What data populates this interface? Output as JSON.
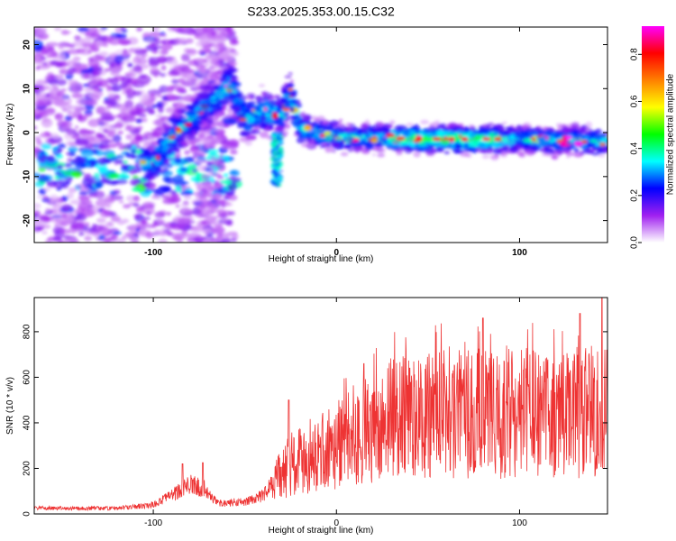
{
  "figure_title": "S233.2025.353.00.15.C32",
  "chart_data": [
    {
      "type": "heatmap",
      "xlabel": "Height of straight line (km)",
      "ylabel": "Frequency (Hz)",
      "xlim": [
        -165,
        148
      ],
      "ylim": [
        -25,
        24
      ],
      "xticks": [
        -100,
        0,
        100
      ],
      "yticks": [
        -20,
        -10,
        0,
        10,
        20
      ],
      "colorbar": {
        "label": "Normalized spectral amplitude",
        "range": [
          0.0,
          0.92
        ],
        "ticks": [
          "0.0",
          "0.2",
          "0.4",
          "0.6",
          "0.8"
        ],
        "colors": [
          "#ffffff",
          "#a020f0",
          "#0000ff",
          "#00ffff",
          "#00ff00",
          "#ffff00",
          "#ff8000",
          "#ff0000",
          "#ff00ff"
        ]
      },
      "ridge": [
        {
          "x": -100,
          "y": -7
        },
        {
          "x": -90,
          "y": -1
        },
        {
          "x": -80,
          "y": 3
        },
        {
          "x": -65,
          "y": 8
        },
        {
          "x": -58,
          "y": 11
        },
        {
          "x": -50,
          "y": 3
        },
        {
          "x": -40,
          "y": 5
        },
        {
          "x": -30,
          "y": 4
        },
        {
          "x": -25,
          "y": 9
        },
        {
          "x": -20,
          "y": 1
        },
        {
          "x": 0,
          "y": -1
        },
        {
          "x": 50,
          "y": -1.5
        },
        {
          "x": 100,
          "y": -1.5
        },
        {
          "x": 145,
          "y": -2
        }
      ]
    },
    {
      "type": "line",
      "xlabel": "Height of straight line (km)",
      "ylabel": "SNR (10 * v/v)",
      "xlim": [
        -165,
        148
      ],
      "ylim": [
        0,
        950
      ],
      "xticks": [
        -100,
        0,
        100
      ],
      "yticks": [
        0,
        200,
        400,
        600,
        800
      ],
      "color": "#ee3333",
      "envelope": [
        {
          "x": -165,
          "y": 25
        },
        {
          "x": -120,
          "y": 25
        },
        {
          "x": -100,
          "y": 40
        },
        {
          "x": -90,
          "y": 80
        },
        {
          "x": -80,
          "y": 130
        },
        {
          "x": -72,
          "y": 110
        },
        {
          "x": -65,
          "y": 45
        },
        {
          "x": -50,
          "y": 55
        },
        {
          "x": -40,
          "y": 80
        },
        {
          "x": -30,
          "y": 180
        },
        {
          "x": -22,
          "y": 240
        },
        {
          "x": -10,
          "y": 260
        },
        {
          "x": 0,
          "y": 300
        },
        {
          "x": 15,
          "y": 360
        },
        {
          "x": 30,
          "y": 420
        },
        {
          "x": 60,
          "y": 440
        },
        {
          "x": 90,
          "y": 440
        },
        {
          "x": 120,
          "y": 440
        },
        {
          "x": 145,
          "y": 450
        }
      ],
      "peaks": [
        {
          "x": -84,
          "y": 220
        },
        {
          "x": -73,
          "y": 225
        },
        {
          "x": -26,
          "y": 500
        },
        {
          "x": 15,
          "y": 660
        },
        {
          "x": 40,
          "y": 640
        },
        {
          "x": 80,
          "y": 860
        },
        {
          "x": 133,
          "y": 880
        },
        {
          "x": 145,
          "y": 950
        }
      ]
    }
  ]
}
